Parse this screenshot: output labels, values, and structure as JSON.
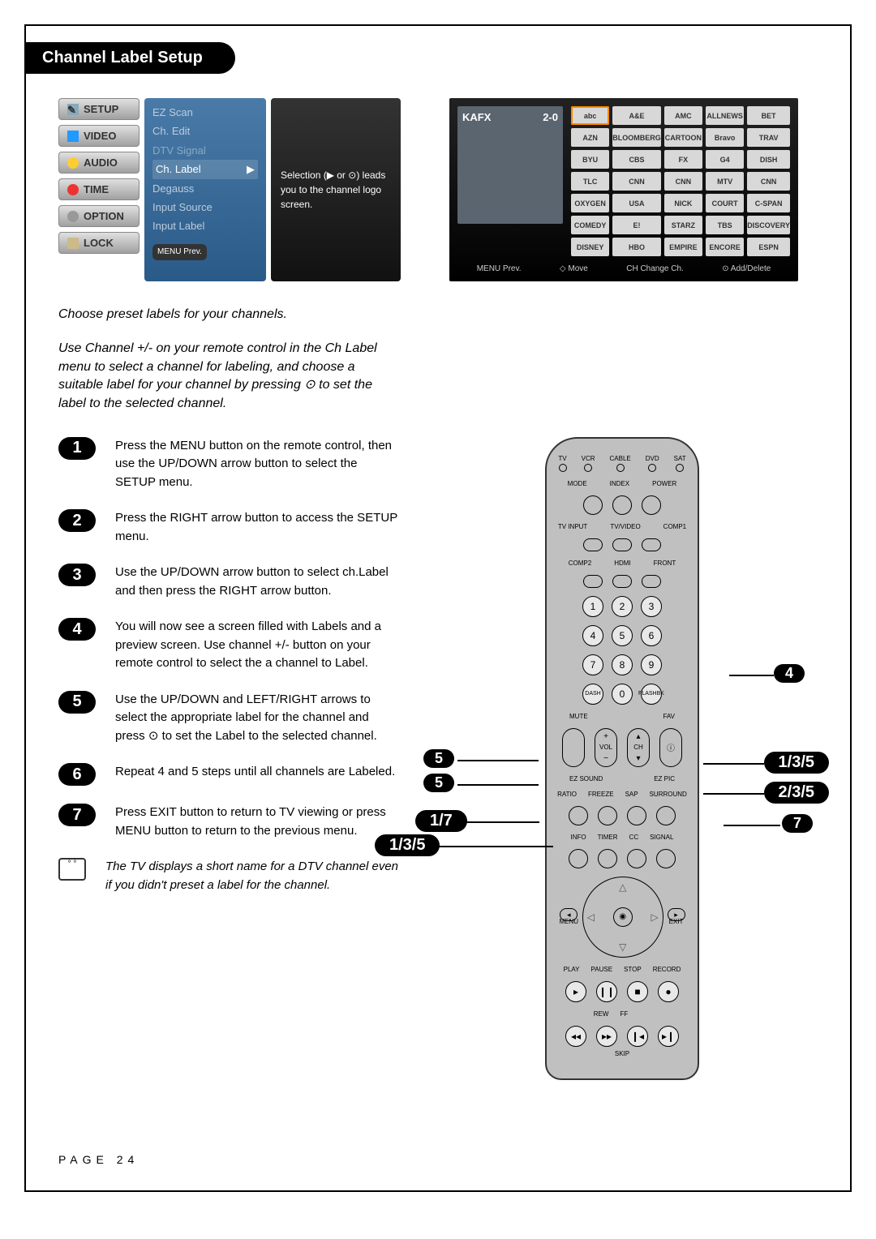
{
  "title": "Channel Label Setup",
  "menu": {
    "buttons": [
      "SETUP",
      "VIDEO",
      "AUDIO",
      "TIME",
      "OPTION",
      "LOCK"
    ],
    "items": [
      "EZ Scan",
      "Ch. Edit",
      "DTV Signal",
      "Ch. Label",
      "Degauss",
      "Input Source",
      "Input Label"
    ],
    "highlighted": "Ch. Label",
    "prev": "MENU Prev.",
    "help": "Selection (▶ or ⊙) leads you to the channel logo screen."
  },
  "logoScreen": {
    "preview_left": "KAFX",
    "preview_right": "2-0",
    "logos": [
      "abc",
      "A&E",
      "AMC",
      "ALLNEWS",
      "BET",
      "AZN",
      "BLOOMBERG",
      "CARTOON",
      "Bravo",
      "TRAV",
      "BYU",
      "CBS",
      "FX",
      "G4",
      "DISH",
      "TLC",
      "CNN",
      "CNN",
      "MTV",
      "CNN",
      "OXYGEN",
      "USA",
      "NICK",
      "COURT",
      "C-SPAN",
      "COMEDY",
      "E!",
      "STARZ",
      "TBS",
      "DISCOVERY",
      "DISNEY",
      "HBO",
      "EMPIRE",
      "ENCORE",
      "ESPN"
    ],
    "bar": [
      "MENU Prev.",
      "◇ Move",
      "CH Change Ch.",
      "⊙ Add/Delete"
    ]
  },
  "intro1": "Choose preset labels for your channels.",
  "intro2": "Use Channel +/- on your remote control in the Ch Label menu to select a channel for labeling, and choose a suitable label for your channel by pressing ⊙ to set the label to the selected channel.",
  "steps": [
    {
      "n": "1",
      "t": "Press the MENU button on the remote control, then use the UP/DOWN arrow button to select the SETUP menu."
    },
    {
      "n": "2",
      "t": "Press the RIGHT arrow button to access the SETUP menu."
    },
    {
      "n": "3",
      "t": "Use the UP/DOWN arrow button to select ch.Label and then press the RIGHT arrow button."
    },
    {
      "n": "4",
      "t": "You will now see a screen filled with Labels and a preview screen. Use channel +/- button on your remote control to select the a channel to Label."
    },
    {
      "n": "5",
      "t": "Use the UP/DOWN and LEFT/RIGHT arrows to select the appropriate label for the channel and press ⊙ to set the Label to the selected channel."
    },
    {
      "n": "6",
      "t": "Repeat 4 and 5 steps until all channels are Labeled."
    },
    {
      "n": "7",
      "t": "Press EXIT button to return to TV viewing or press MENU button to return to the previous menu."
    }
  ],
  "note": "The TV displays a short name for a DTV channel even if you didn't preset a label for the channel.",
  "remote": {
    "row1": [
      "TV",
      "VCR",
      "CABLE",
      "DVD",
      "SAT"
    ],
    "row2": [
      "MODE",
      "INDEX",
      "POWER"
    ],
    "row3": [
      "TV INPUT",
      "TV/VIDEO",
      "COMP1"
    ],
    "row4": [
      "COMP2",
      "HDMI",
      "FRONT"
    ],
    "numpad": [
      "1",
      "2",
      "3",
      "4",
      "5",
      "6",
      "7",
      "8",
      "9",
      "DASH",
      "0",
      "FLASHBK"
    ],
    "row5l": "MUTE",
    "row5r": "FAV",
    "row6l": "EZ SOUND",
    "row6r": "EZ PIC",
    "vol": "VOL",
    "ch": "CH",
    "row7": [
      "RATIO",
      "FREEZE",
      "SAP",
      "SURROUND"
    ],
    "row8": [
      "INFO",
      "TIMER",
      "CC",
      "SIGNAL"
    ],
    "menu": "MENU",
    "exit": "EXIT",
    "row9": [
      "PLAY",
      "PAUSE",
      "STOP",
      "RECORD"
    ],
    "row10": [
      "REW",
      "FF",
      "",
      ""
    ],
    "skip": "SKIP"
  },
  "callouts": {
    "c4": "4",
    "c5a": "5",
    "c5b": "5",
    "c135a": "1/3/5",
    "c135b": "1/3/5",
    "c235": "2/3/5",
    "c7": "7",
    "c17": "1/7"
  },
  "footer": "PAGE 24"
}
